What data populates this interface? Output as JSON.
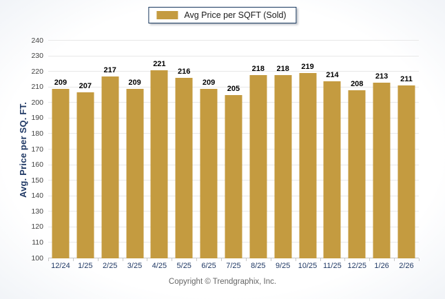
{
  "legend": {
    "label": "Avg Price per SQFT (Sold)",
    "swatch_color": "#C49B40"
  },
  "chart_data": {
    "type": "bar",
    "title": "",
    "categories": [
      "12/24",
      "1/25",
      "2/25",
      "3/25",
      "4/25",
      "5/25",
      "6/25",
      "7/25",
      "8/25",
      "9/25",
      "10/25",
      "11/25",
      "12/25",
      "1/26",
      "2/26"
    ],
    "series": [
      {
        "name": "Avg Price per SQFT (Sold)",
        "values": [
          209,
          207,
          217,
          209,
          221,
          216,
          209,
          205,
          218,
          218,
          219,
          214,
          208,
          213,
          211
        ]
      }
    ],
    "xlabel": "",
    "ylabel": "Avg. Price per SQ. FT.",
    "ylim": [
      100,
      240
    ],
    "ytick_step": 10,
    "grid": true,
    "legend_position": "top-center",
    "bar_color": "#C49B40",
    "value_labels_shown": true
  },
  "footer": {
    "copyright": "Copyright © Trendgraphix, Inc."
  }
}
